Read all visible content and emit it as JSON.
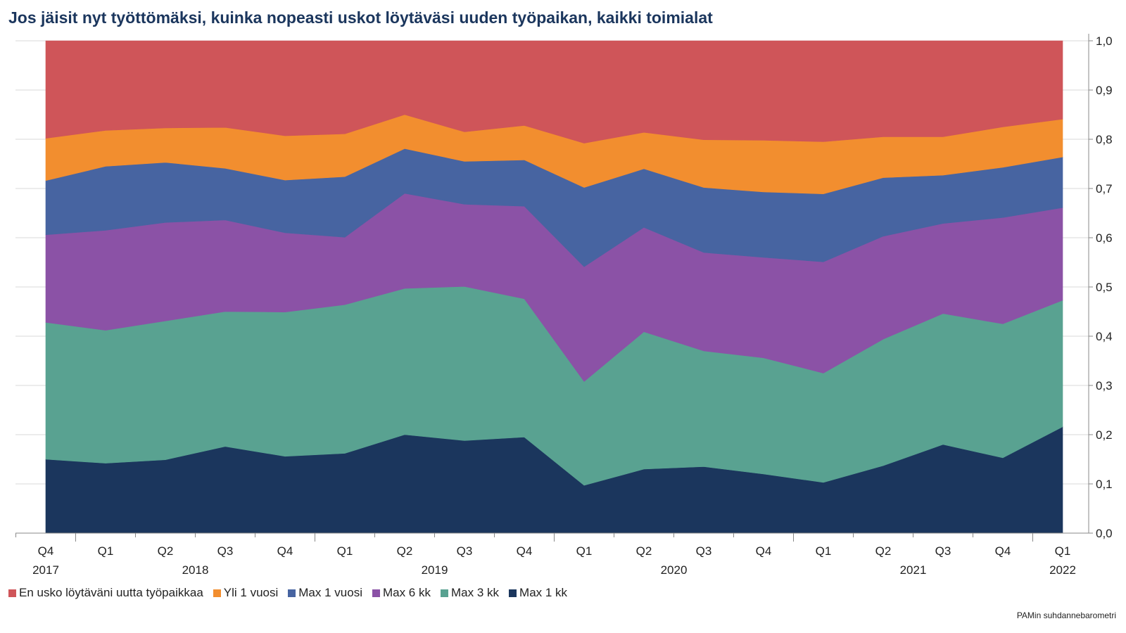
{
  "title": "Jos jäisit nyt työttömäksi, kuinka nopeasti uskot löytäväsi uuden työpaikan, kaikki toimialat",
  "source": "PAMin suhdannebarometri",
  "chart_data": {
    "type": "area",
    "stacked": true,
    "quarters": [
      "Q4",
      "Q1",
      "Q2",
      "Q3",
      "Q4",
      "Q1",
      "Q2",
      "Q3",
      "Q4",
      "Q1",
      "Q2",
      "Q3",
      "Q4",
      "Q1",
      "Q2",
      "Q3",
      "Q4",
      "Q1"
    ],
    "years": [
      {
        "label": "2017",
        "index": 0
      },
      {
        "label": "2018",
        "index": 2.5
      },
      {
        "label": "2019",
        "index": 6.5
      },
      {
        "label": "2020",
        "index": 10.5
      },
      {
        "label": "2021",
        "index": 14.5
      },
      {
        "label": "2022",
        "index": 17
      }
    ],
    "year_boundaries": [
      0.5,
      4.5,
      8.5,
      12.5,
      16.5
    ],
    "y_axis": {
      "position": "right",
      "min": 0,
      "max": 1.0,
      "step": 0.1,
      "tick_labels": [
        "0,0",
        "0,1",
        "0,2",
        "0,3",
        "0,4",
        "0,5",
        "0,6",
        "0,7",
        "0,8",
        "0,9",
        "1,0"
      ]
    },
    "grid": true,
    "legend_position": "bottom",
    "series": [
      {
        "name": "Max 1 kk",
        "color": "#1b365d",
        "values": [
          0.15,
          0.142,
          0.149,
          0.176,
          0.156,
          0.162,
          0.2,
          0.188,
          0.195,
          0.097,
          0.13,
          0.135,
          0.12,
          0.103,
          0.137,
          0.18,
          0.153,
          0.216
        ]
      },
      {
        "name": "Max 3 kk",
        "color": "#59a291",
        "values": [
          0.278,
          0.27,
          0.282,
          0.274,
          0.293,
          0.302,
          0.297,
          0.313,
          0.281,
          0.211,
          0.279,
          0.235,
          0.236,
          0.222,
          0.257,
          0.266,
          0.272,
          0.257
        ]
      },
      {
        "name": "Max 6 kk",
        "color": "#8b52a6",
        "values": [
          0.178,
          0.203,
          0.2,
          0.186,
          0.161,
          0.137,
          0.193,
          0.167,
          0.188,
          0.233,
          0.212,
          0.2,
          0.204,
          0.226,
          0.209,
          0.183,
          0.216,
          0.188
        ]
      },
      {
        "name": "Max 1 vuosi",
        "color": "#4764a1",
        "values": [
          0.11,
          0.13,
          0.122,
          0.105,
          0.107,
          0.123,
          0.091,
          0.087,
          0.094,
          0.161,
          0.119,
          0.132,
          0.133,
          0.138,
          0.119,
          0.098,
          0.102,
          0.103
        ]
      },
      {
        "name": "Yli 1 vuosi",
        "color": "#f28e2f",
        "values": [
          0.086,
          0.073,
          0.07,
          0.083,
          0.09,
          0.087,
          0.069,
          0.06,
          0.07,
          0.09,
          0.074,
          0.097,
          0.105,
          0.106,
          0.083,
          0.078,
          0.082,
          0.077
        ]
      },
      {
        "name": "En usko löytäväni uutta työpaikkaa",
        "color": "#cf5559",
        "values": [
          0.198,
          0.182,
          0.177,
          0.176,
          0.193,
          0.189,
          0.15,
          0.185,
          0.172,
          0.208,
          0.186,
          0.201,
          0.202,
          0.205,
          0.195,
          0.195,
          0.175,
          0.159
        ]
      }
    ]
  }
}
